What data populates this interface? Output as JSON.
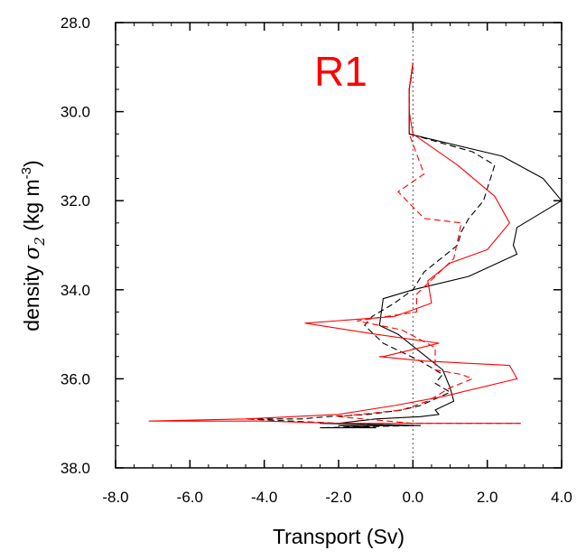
{
  "chart_data": {
    "type": "line",
    "title": "R1",
    "title_color": "#ff0000",
    "xlabel": "Transport (Sv)",
    "ylabel_parts": {
      "prefix": "density ",
      "symbol": "σ",
      "subscript": "2",
      "unit_open": " (kg m",
      "unit_exp": "-3",
      "unit_close": ")"
    },
    "xlim": [
      -8.0,
      4.0
    ],
    "ylim": [
      38.0,
      28.0
    ],
    "y_inverted": true,
    "xticks": [
      "-8.0",
      "-6.0",
      "-4.0",
      "-2.0",
      "0.0",
      "2.0",
      "4.0"
    ],
    "yticks": [
      "28.0",
      "30.0",
      "32.0",
      "34.0",
      "36.0",
      "38.0"
    ],
    "zero_line": {
      "x": 0.0,
      "style": "dotted",
      "color": "#444444"
    },
    "legend": "none",
    "grid": false,
    "series": [
      {
        "color": "#000000",
        "dash": "solid",
        "x": [
          0.0,
          -0.1,
          -0.1,
          -0.1,
          2.4,
          3.5,
          4.0,
          2.8,
          2.7,
          2.8,
          1.5,
          0.0,
          -0.8,
          -0.9,
          -0.4,
          0.2,
          0.8,
          1.0,
          1.1,
          0.6,
          0.7,
          0.2,
          -1.0,
          -2.0,
          -2.5,
          0.2,
          -2.0,
          -1.0,
          -2.5
        ],
        "y": [
          28.9,
          29.5,
          30.0,
          30.5,
          31.0,
          31.5,
          32.0,
          32.6,
          33.0,
          33.2,
          33.7,
          34.0,
          34.2,
          34.8,
          35.0,
          35.4,
          35.8,
          36.2,
          36.5,
          36.7,
          36.8,
          36.85,
          36.9,
          37.0,
          37.0,
          37.05,
          37.05,
          37.1,
          37.1
        ]
      },
      {
        "color": "#000000",
        "dash": "dashed",
        "x": [
          0.0,
          -0.1,
          -0.1,
          -0.1,
          1.6,
          2.2,
          1.9,
          1.5,
          1.3,
          1.2,
          0.3,
          0.0,
          -0.5,
          -1.1,
          -1.3,
          -0.8,
          0.2,
          0.8,
          0.6,
          1.0,
          0.2,
          -0.3,
          -1.2,
          -2.3,
          -3.0,
          -4.5,
          -2.0,
          0.0,
          -2.5
        ],
        "y": [
          29.0,
          29.5,
          30.0,
          30.5,
          30.9,
          31.2,
          32.0,
          32.4,
          32.7,
          33.0,
          33.6,
          34.0,
          34.3,
          34.6,
          34.8,
          35.2,
          35.6,
          35.9,
          36.1,
          36.3,
          36.6,
          36.7,
          36.8,
          36.85,
          36.9,
          36.9,
          37.0,
          37.05,
          37.1
        ]
      },
      {
        "color": "#ff0000",
        "dash": "solid",
        "x": [
          0.0,
          -0.1,
          -0.1,
          0.0,
          1.2,
          2.2,
          2.6,
          2.0,
          1.0,
          0.4,
          0.5,
          -0.5,
          -2.9,
          -1.0,
          0.7,
          -0.8,
          -0.9,
          0.3,
          2.6,
          2.8,
          0.8,
          -0.5,
          -2.0,
          -4.5,
          -7.1,
          -4.0,
          -2.0,
          0.5,
          2.9
        ],
        "y": [
          28.9,
          29.5,
          30.0,
          30.5,
          31.2,
          31.9,
          32.5,
          33.1,
          33.4,
          33.8,
          34.3,
          34.6,
          34.75,
          35.0,
          35.2,
          35.5,
          35.5,
          35.6,
          35.7,
          36.0,
          36.4,
          36.6,
          36.8,
          36.9,
          36.95,
          36.95,
          37.0,
          37.0,
          37.0
        ]
      },
      {
        "color": "#ff0000",
        "dash": "dashed",
        "x": [
          0.0,
          -0.1,
          -0.1,
          -0.1,
          0.3,
          -0.4,
          0.3,
          1.3,
          1.1,
          0.6,
          0.1,
          0.1,
          -1.5,
          -0.3,
          0.6,
          0.6,
          1.3,
          1.6,
          1.0,
          0.4,
          -0.3,
          -2.0,
          0.0,
          2.9
        ],
        "y": [
          29.0,
          29.5,
          30.0,
          30.5,
          31.4,
          31.8,
          32.4,
          32.5,
          33.3,
          33.7,
          34.1,
          34.5,
          34.7,
          34.9,
          35.3,
          35.8,
          35.9,
          36.0,
          36.2,
          36.5,
          36.7,
          36.85,
          37.0,
          37.0
        ]
      }
    ]
  }
}
